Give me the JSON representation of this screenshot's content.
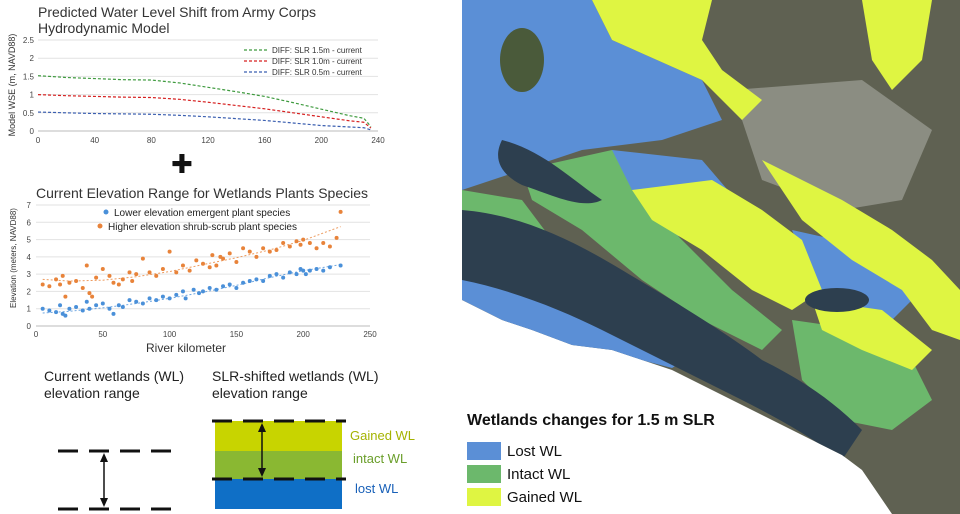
{
  "chart_top": {
    "title_line1": "Predicted Water Level Shift from Army Corps",
    "title_line2": "Hydrodynamic Model",
    "ylabel": "Model WSE (m, NAVD88)",
    "xlim": [
      0,
      240
    ],
    "ylim": [
      0,
      2.5
    ],
    "xticks": [
      "0",
      "40",
      "80",
      "120",
      "160",
      "200",
      "240"
    ],
    "yticks": [
      "0",
      "0.5",
      "1",
      "1.5",
      "2",
      "2.5"
    ],
    "legend": [
      {
        "name": "DIFF: SLR 1.5m - current",
        "color": "#3e9a3e"
      },
      {
        "name": "DIFF: SLR 1.0m - current",
        "color": "#d62020"
      },
      {
        "name": "DIFF: SLR 0.5m - current",
        "color": "#3b5fb0"
      }
    ]
  },
  "plus_symbol": "✚",
  "chart_bottom": {
    "title": "Current Elevation Range for Wetlands Plants Species",
    "xlabel": "River kilometer",
    "ylabel": "Elevation (meters, NAVD88)",
    "xlim": [
      0,
      250
    ],
    "ylim": [
      0,
      7
    ],
    "xticks": [
      "0",
      "50",
      "100",
      "150",
      "200",
      "250"
    ],
    "yticks": [
      "0",
      "1",
      "2",
      "3",
      "4",
      "5",
      "6",
      "7"
    ],
    "legend": [
      {
        "name": "Lower elevation emergent plant species",
        "color": "#4a90d9"
      },
      {
        "name": "Higher elevation shrub-scrub plant species",
        "color": "#e8833a"
      }
    ]
  },
  "chart_data": [
    {
      "type": "line",
      "series": [
        {
          "name": "DIFF: SLR 1.5m - current",
          "color": "#3e9a3e",
          "x": [
            0,
            20,
            40,
            60,
            80,
            100,
            120,
            140,
            160,
            180,
            200,
            220,
            230,
            235
          ],
          "y": [
            1.52,
            1.47,
            1.44,
            1.41,
            1.4,
            1.32,
            1.2,
            1.08,
            0.95,
            0.78,
            0.6,
            0.42,
            0.35,
            0.12
          ]
        },
        {
          "name": "DIFF: SLR 1.0m - current",
          "color": "#d62020",
          "x": [
            0,
            20,
            40,
            60,
            80,
            100,
            120,
            140,
            160,
            180,
            200,
            220,
            230,
            235
          ],
          "y": [
            1.0,
            0.97,
            0.95,
            0.93,
            0.92,
            0.87,
            0.79,
            0.7,
            0.61,
            0.5,
            0.39,
            0.28,
            0.24,
            0.08
          ]
        },
        {
          "name": "DIFF: SLR 0.5m - current",
          "color": "#3b5fb0",
          "x": [
            0,
            20,
            40,
            60,
            80,
            100,
            120,
            140,
            160,
            180,
            200,
            220,
            230,
            235
          ],
          "y": [
            0.52,
            0.5,
            0.48,
            0.47,
            0.46,
            0.43,
            0.39,
            0.34,
            0.29,
            0.22,
            0.15,
            0.11,
            0.09,
            0.03
          ]
        }
      ]
    },
    {
      "type": "scatter",
      "series": [
        {
          "name": "Lower elevation emergent plant species",
          "color": "#4a90d9",
          "points": [
            [
              5,
              1.0
            ],
            [
              10,
              0.9
            ],
            [
              15,
              0.8
            ],
            [
              18,
              1.2
            ],
            [
              20,
              0.7
            ],
            [
              22,
              0.6
            ],
            [
              25,
              1.0
            ],
            [
              30,
              1.1
            ],
            [
              35,
              0.9
            ],
            [
              38,
              1.4
            ],
            [
              40,
              1.0
            ],
            [
              45,
              1.2
            ],
            [
              50,
              1.3
            ],
            [
              55,
              1.0
            ],
            [
              58,
              0.7
            ],
            [
              62,
              1.2
            ],
            [
              65,
              1.1
            ],
            [
              70,
              1.5
            ],
            [
              75,
              1.4
            ],
            [
              80,
              1.3
            ],
            [
              85,
              1.6
            ],
            [
              90,
              1.5
            ],
            [
              95,
              1.7
            ],
            [
              100,
              1.6
            ],
            [
              105,
              1.8
            ],
            [
              110,
              2.0
            ],
            [
              112,
              1.6
            ],
            [
              118,
              2.1
            ],
            [
              122,
              1.9
            ],
            [
              125,
              2.0
            ],
            [
              130,
              2.2
            ],
            [
              135,
              2.1
            ],
            [
              140,
              2.3
            ],
            [
              145,
              2.4
            ],
            [
              150,
              2.2
            ],
            [
              155,
              2.5
            ],
            [
              160,
              2.6
            ],
            [
              165,
              2.7
            ],
            [
              170,
              2.6
            ],
            [
              175,
              2.9
            ],
            [
              180,
              3.0
            ],
            [
              185,
              2.8
            ],
            [
              190,
              3.1
            ],
            [
              195,
              3.0
            ],
            [
              198,
              3.3
            ],
            [
              200,
              3.2
            ],
            [
              202,
              3.0
            ],
            [
              205,
              3.2
            ],
            [
              210,
              3.3
            ],
            [
              215,
              3.2
            ],
            [
              220,
              3.4
            ],
            [
              228,
              3.5
            ]
          ],
          "trend": [
            [
              5,
              0.75
            ],
            [
              25,
              0.85
            ],
            [
              50,
              1.05
            ],
            [
              75,
              1.3
            ],
            [
              100,
              1.6
            ],
            [
              125,
              1.95
            ],
            [
              150,
              2.35
            ],
            [
              175,
              2.8
            ],
            [
              200,
              3.2
            ],
            [
              228,
              3.55
            ]
          ]
        },
        {
          "name": "Higher elevation shrub-scrub plant species",
          "color": "#e8833a",
          "points": [
            [
              5,
              2.4
            ],
            [
              10,
              2.3
            ],
            [
              15,
              2.7
            ],
            [
              18,
              2.4
            ],
            [
              20,
              2.9
            ],
            [
              22,
              1.7
            ],
            [
              25,
              2.5
            ],
            [
              30,
              2.6
            ],
            [
              35,
              2.2
            ],
            [
              38,
              3.5
            ],
            [
              40,
              1.9
            ],
            [
              42,
              1.7
            ],
            [
              45,
              2.8
            ],
            [
              50,
              3.3
            ],
            [
              55,
              2.9
            ],
            [
              58,
              2.5
            ],
            [
              62,
              2.4
            ],
            [
              65,
              2.7
            ],
            [
              70,
              3.1
            ],
            [
              72,
              2.6
            ],
            [
              75,
              3.0
            ],
            [
              80,
              3.9
            ],
            [
              85,
              3.1
            ],
            [
              90,
              2.9
            ],
            [
              95,
              3.3
            ],
            [
              100,
              4.3
            ],
            [
              105,
              3.1
            ],
            [
              110,
              3.5
            ],
            [
              115,
              3.2
            ],
            [
              120,
              3.8
            ],
            [
              125,
              3.6
            ],
            [
              130,
              3.4
            ],
            [
              132,
              4.1
            ],
            [
              135,
              3.5
            ],
            [
              138,
              4.0
            ],
            [
              140,
              3.9
            ],
            [
              145,
              4.2
            ],
            [
              150,
              3.7
            ],
            [
              155,
              4.5
            ],
            [
              160,
              4.3
            ],
            [
              165,
              4.0
            ],
            [
              170,
              4.5
            ],
            [
              175,
              4.3
            ],
            [
              180,
              4.4
            ],
            [
              185,
              4.8
            ],
            [
              190,
              4.6
            ],
            [
              195,
              4.9
            ],
            [
              198,
              4.7
            ],
            [
              200,
              5.0
            ],
            [
              205,
              4.8
            ],
            [
              210,
              4.5
            ],
            [
              215,
              4.8
            ],
            [
              220,
              4.6
            ],
            [
              225,
              5.1
            ],
            [
              228,
              6.6
            ]
          ],
          "trend": [
            [
              5,
              2.7
            ],
            [
              25,
              2.6
            ],
            [
              50,
              2.65
            ],
            [
              75,
              2.85
            ],
            [
              100,
              3.15
            ],
            [
              125,
              3.55
            ],
            [
              150,
              3.95
            ],
            [
              175,
              4.4
            ],
            [
              200,
              4.95
            ],
            [
              228,
              5.75
            ]
          ]
        }
      ]
    }
  ],
  "diagram": {
    "current_label_line1": "Current wetlands (WL)",
    "current_label_line2": "elevation range",
    "shifted_label_line1": "SLR-shifted wetlands (WL)",
    "shifted_label_line2": "elevation range",
    "gained_label": "Gained WL",
    "intact_label": "intact WL",
    "lost_label": "lost WL",
    "gained_color": "#c8d400",
    "intact_color": "#8ab832",
    "lost_color": "#0f6fc6",
    "gained_text_color": "#a4b300",
    "intact_text_color": "#6a9e2a",
    "lost_text_color": "#1860b8"
  },
  "map": {
    "legend_title": "Wetlands changes for 1.5 m SLR",
    "legend": [
      {
        "label": "Lost WL",
        "color": "#5b8fd6"
      },
      {
        "label": "Intact WL",
        "color": "#6cb86c"
      },
      {
        "label": "Gained WL",
        "color": "#dff542"
      }
    ],
    "water_color": "#2d3f4f",
    "land_color": "#5f6152",
    "urban_color": "#8b8d82"
  }
}
